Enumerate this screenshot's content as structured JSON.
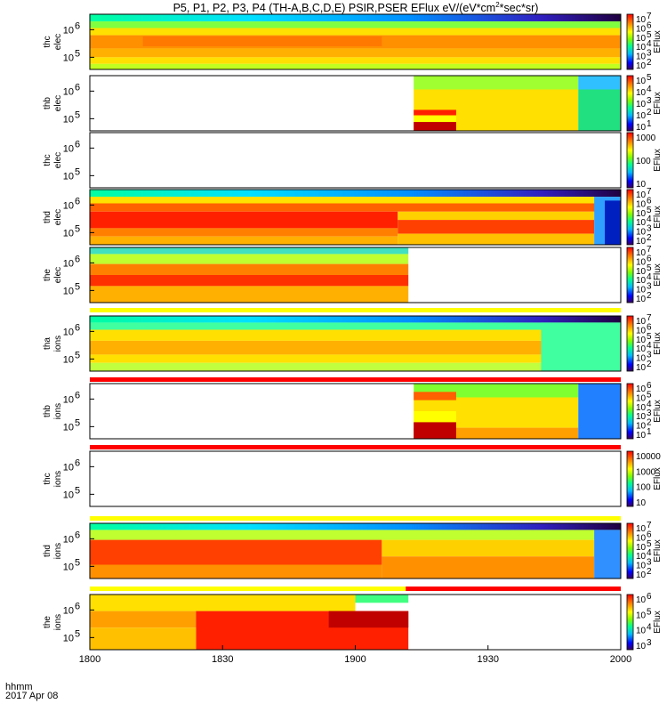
{
  "chart_data": {
    "type": "heatmap",
    "title_main": "P5, P1, P2, P3, P4 (TH-A,B,C,D,E) PSIR,PSER EFlux eV/(eV*cm",
    "title_sup": "2",
    "title_tail": "*sec*sr)",
    "x_ticks": [
      "1800",
      "1830",
      "1900",
      "1930",
      "2000"
    ],
    "x_corner_label": "hhmm",
    "date_label": "2017 Apr 08",
    "panels": [
      {
        "name": "thc_elec",
        "ylabel": [
          "thc",
          "elec"
        ],
        "yticks": [
          "10",
          "10"
        ],
        "ytick_exp": [
          "6",
          "5"
        ],
        "cbar_label": "EFlux",
        "cbar_exps": [
          "7",
          "6",
          "5",
          "4",
          "3",
          "2"
        ],
        "pattern": "thc_elec"
      },
      {
        "name": "thb_elec",
        "ylabel": [
          "thb",
          "elec"
        ],
        "yticks": [
          "10",
          "10"
        ],
        "ytick_exp": [
          "6",
          "5"
        ],
        "cbar_label": "EFlux",
        "cbar_exps": [
          "5",
          "4",
          "3",
          "2",
          "1"
        ],
        "pattern": "thb_elec"
      },
      {
        "name": "thc_elec_empty",
        "ylabel": [
          "thc",
          "elec"
        ],
        "yticks": [
          "10",
          "10"
        ],
        "ytick_exp": [
          "6",
          "5"
        ],
        "cbar_label": "EFlux",
        "cbar_plain": [
          "1000",
          "100",
          "10"
        ],
        "pattern": "empty"
      },
      {
        "name": "thd_elec",
        "ylabel": [
          "thd",
          "elec"
        ],
        "yticks": [
          "10",
          "10"
        ],
        "ytick_exp": [
          "6",
          "5"
        ],
        "cbar_label": "EFlux",
        "cbar_exps": [
          "7",
          "6",
          "5",
          "4",
          "3",
          "2"
        ],
        "pattern": "thd_elec"
      },
      {
        "name": "the_elec",
        "ylabel": [
          "the",
          "elec"
        ],
        "yticks": [
          "10",
          "10"
        ],
        "ytick_exp": [
          "6",
          "5"
        ],
        "cbar_label": "EFlux",
        "cbar_exps": [
          "7",
          "6",
          "5",
          "4",
          "3",
          "2"
        ],
        "pattern": "the_elec"
      },
      {
        "name": "tha_ions",
        "ylabel": [
          "tha",
          "ions"
        ],
        "yticks": [
          "10",
          "10"
        ],
        "ytick_exp": [
          "6",
          "5"
        ],
        "cbar_label": "EFlux",
        "cbar_exps": [
          "7",
          "6",
          "5",
          "4",
          "3",
          "2"
        ],
        "pattern": "tha_ions"
      },
      {
        "name": "thb_ions",
        "ylabel": [
          "thb",
          "ions"
        ],
        "yticks": [
          "10",
          "10"
        ],
        "ytick_exp": [
          "6",
          "5"
        ],
        "cbar_label": "EFlux",
        "cbar_exps": [
          "6",
          "5",
          "4",
          "3",
          "2",
          "1"
        ],
        "pattern": "thb_ions"
      },
      {
        "name": "thc_ions",
        "ylabel": [
          "thc",
          "ions"
        ],
        "yticks": [
          "10",
          "10"
        ],
        "ytick_exp": [
          "6",
          "5"
        ],
        "cbar_label": "EFlux",
        "cbar_plain": [
          "10000",
          "1000",
          "100",
          "10"
        ],
        "pattern": "empty"
      },
      {
        "name": "thd_ions",
        "ylabel": [
          "thd",
          "ions"
        ],
        "yticks": [
          "10",
          "10"
        ],
        "ytick_exp": [
          "6",
          "5"
        ],
        "cbar_label": "EFlux",
        "cbar_exps": [
          "7",
          "6",
          "5",
          "4",
          "3",
          "2"
        ],
        "pattern": "thd_ions"
      },
      {
        "name": "the_ions",
        "ylabel": [
          "the",
          "ions"
        ],
        "yticks": [
          "10",
          "10"
        ],
        "ytick_exp": [
          "6",
          "5"
        ],
        "cbar_label": "EFlux",
        "cbar_exps": [
          "6",
          "5",
          "4",
          "3"
        ],
        "pattern": "the_ions"
      }
    ],
    "mode_bars": [
      {
        "after_panel": 4,
        "segments": [
          {
            "from": 0,
            "to": 1,
            "color": "#ffff00"
          }
        ]
      },
      {
        "after_panel": 5,
        "segments": [
          {
            "from": 0,
            "to": 1,
            "color": "#ff0000"
          }
        ]
      },
      {
        "after_panel": 6,
        "segments": [
          {
            "from": 0,
            "to": 1,
            "color": "#ff0000"
          }
        ]
      },
      {
        "after_panel": 7,
        "segments": [
          {
            "from": 0,
            "to": 1,
            "color": "#ffff00"
          }
        ]
      },
      {
        "after_panel": 8,
        "segments": [
          {
            "from": 0,
            "to": 0.595,
            "color": "#ffff00"
          },
          {
            "from": 0.595,
            "to": 1,
            "color": "#ff0000"
          }
        ]
      }
    ]
  }
}
